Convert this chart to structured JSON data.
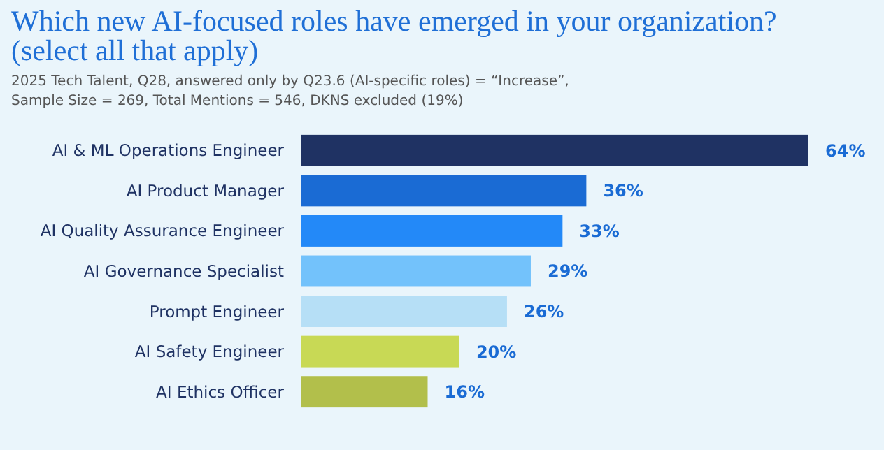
{
  "chart_data": {
    "type": "bar",
    "orientation": "horizontal",
    "title": "Which new AI-focused roles have emerged in your organization? (select all that apply)",
    "subtitle": "2025 Tech Talent, Q28, answered only by Q23.6 (AI-specific roles) = “Increase”, Sample Size = 269, Total Mentions = 546, DKNS excluded (19%)",
    "categories": [
      "AI & ML Operations Engineer",
      "AI Product Manager",
      "AI Quality Assurance Engineer",
      "AI Governance Specialist",
      "Prompt Engineer",
      "AI Safety Engineer",
      "AI Ethics Officer"
    ],
    "values": [
      64,
      36,
      33,
      29,
      26,
      20,
      16
    ],
    "value_labels": [
      "64%",
      "36%",
      "33%",
      "29%",
      "26%",
      "20%",
      "16%"
    ],
    "colors": [
      "#1f3263",
      "#1a6bd4",
      "#2389f8",
      "#73c2fb",
      "#b6dff6",
      "#c8d955",
      "#b2bf4b"
    ],
    "xlim": [
      0,
      64
    ],
    "tick_labels": "y"
  }
}
